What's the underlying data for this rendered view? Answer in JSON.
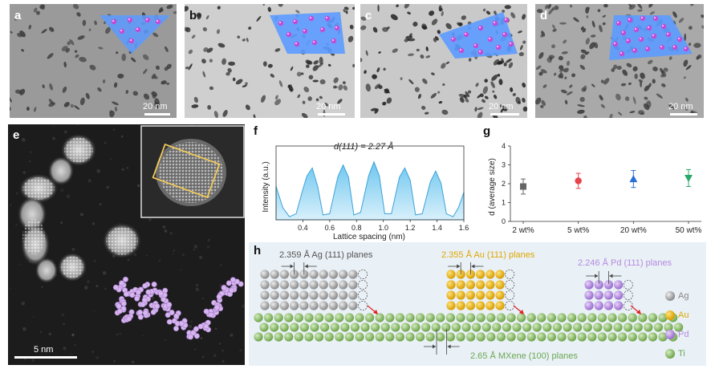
{
  "panels": {
    "a": {
      "label": "a",
      "scalebar": "20 nm"
    },
    "b": {
      "label": "b",
      "scalebar": "20 nm"
    },
    "c": {
      "label": "c",
      "scalebar": "20 nm"
    },
    "d": {
      "label": "d",
      "scalebar": "20 nm"
    },
    "e": {
      "label": "e",
      "scalebar": "5 nm"
    },
    "f": {
      "label": "f"
    },
    "g": {
      "label": "g"
    },
    "h": {
      "label": "h"
    }
  },
  "colors": {
    "mxene_sheet": "#5b9bff",
    "nanoparticle": "#c34bd6",
    "profile_fill": "#49b3e6",
    "inset_box": "#f0c95a",
    "ag": "#a9a9a9",
    "au": "#f2b800",
    "pd": "#b58be0",
    "ti": "#8fc16a",
    "marker_2": "#666666",
    "marker_5": "#e8424a",
    "marker_20": "#2a6fd4",
    "marker_50": "#2aa86a",
    "ag_text": "#888888",
    "au_text": "#e0a800",
    "pd_text": "#b58be0",
    "ti_text": "#6aa84f"
  },
  "chart_data": [
    {
      "type": "area",
      "panel": "f",
      "title": "d(111) = 2.27 Å",
      "xlabel": "Lattice spacing (nm)",
      "ylabel": "Intensity (a.u.)",
      "xlim": [
        0.2,
        1.6
      ],
      "xticks": [
        "0.4",
        "0.6",
        "0.8",
        "1.0",
        "1.2",
        "1.4",
        "1.6"
      ],
      "x": [
        0.2,
        0.25,
        0.3,
        0.35,
        0.4,
        0.43,
        0.47,
        0.51,
        0.55,
        0.6,
        0.66,
        0.7,
        0.74,
        0.78,
        0.83,
        0.89,
        0.93,
        0.97,
        1.01,
        1.06,
        1.12,
        1.16,
        1.2,
        1.24,
        1.29,
        1.35,
        1.39,
        1.43,
        1.47,
        1.52,
        1.56,
        1.6
      ],
      "y": [
        0.55,
        0.2,
        0.05,
        0.1,
        0.5,
        0.72,
        0.85,
        0.55,
        0.08,
        0.1,
        0.7,
        0.9,
        0.7,
        0.08,
        0.12,
        0.72,
        0.95,
        0.72,
        0.1,
        0.1,
        0.7,
        0.85,
        0.65,
        0.08,
        0.1,
        0.62,
        0.8,
        0.6,
        0.1,
        0.05,
        0.2,
        0.45
      ]
    },
    {
      "type": "scatter",
      "panel": "g",
      "ylabel": "d (average size)",
      "categories": [
        "2 wt%",
        "5 wt%",
        "20 wt%",
        "50 wt%"
      ],
      "values": [
        1.85,
        2.15,
        2.25,
        2.3
      ],
      "errors": [
        0.4,
        0.4,
        0.45,
        0.45
      ],
      "markers": [
        "square",
        "circle",
        "triangle",
        "triangle-down"
      ],
      "ylim": [
        0,
        4
      ],
      "yticks": [
        "0",
        "1",
        "2",
        "3",
        "4"
      ]
    }
  ],
  "panel_h": {
    "ag_label": "2.359 Å Ag (111) planes",
    "au_label": "2.355 Å Au (111) planes",
    "pd_label": "2.246 Å Pd (111) planes",
    "mxene_label": "2.65 Å MXene (100) planes",
    "legend": [
      "Ag",
      "Au",
      "Pd",
      "Ti"
    ]
  }
}
